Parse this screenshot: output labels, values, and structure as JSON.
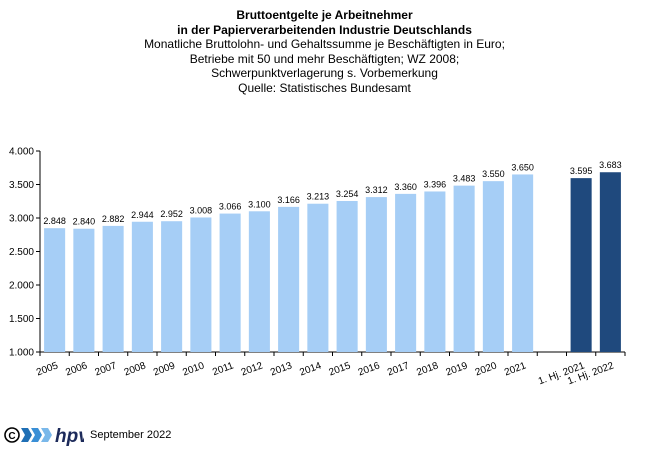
{
  "header": {
    "title_line1": "Bruttoentgelte  je Arbeitnehmer",
    "title_line2": "in der Papierverarbeitenden Industrie Deutschlands",
    "subtitle_line1": "Monatliche Bruttolohn-  und  Gehaltssumme je Beschäftigten  in Euro;",
    "subtitle_line2": "Betriebe  mit 50 und mehr Beschäftigten;  WZ 2008;",
    "subtitle_line3": "Schwerpunktverlagerung   s. Vorbemerkung",
    "subtitle_line4": "Quelle:  Statistisches Bundesamt"
  },
  "footer": {
    "logo_text": "hpv",
    "date": "September 2022"
  },
  "chart_data": {
    "type": "bar",
    "categories": [
      "2005",
      "2006",
      "2007",
      "2008",
      "2009",
      "2010",
      "2011",
      "2012",
      "2013",
      "2014",
      "2015",
      "2016",
      "2017",
      "2018",
      "2019",
      "2020",
      "2021",
      "",
      "1. Hj. 2021",
      "1. Hj. 2022"
    ],
    "values": [
      2848,
      2840,
      2882,
      2944,
      2952,
      3008,
      3066,
      3100,
      3166,
      3213,
      3254,
      3312,
      3360,
      3396,
      3483,
      3550,
      3650,
      null,
      3595,
      3683
    ],
    "value_labels": [
      "2.848",
      "2.840",
      "2.882",
      "2.944",
      "2.952",
      "3.008",
      "3.066",
      "3.100",
      "3.166",
      "3.213",
      "3.254",
      "3.312",
      "3.360",
      "3.396",
      "3.483",
      "3.550",
      "3.650",
      "",
      "3.595",
      "3.683"
    ],
    "bar_colors": [
      "#a6cef6",
      "#a6cef6",
      "#a6cef6",
      "#a6cef6",
      "#a6cef6",
      "#a6cef6",
      "#a6cef6",
      "#a6cef6",
      "#a6cef6",
      "#a6cef6",
      "#a6cef6",
      "#a6cef6",
      "#a6cef6",
      "#a6cef6",
      "#a6cef6",
      "#a6cef6",
      "#a6cef6",
      "#ffffff",
      "#1f497d",
      "#1f497d"
    ],
    "ylim": [
      1000,
      4000
    ],
    "yticks": [
      1000,
      1500,
      2000,
      2500,
      3000,
      3500,
      4000
    ],
    "ytick_labels": [
      "1.000",
      "1.500",
      "2.000",
      "2.500",
      "3.000",
      "3.500",
      "4.000"
    ],
    "grid": false
  }
}
